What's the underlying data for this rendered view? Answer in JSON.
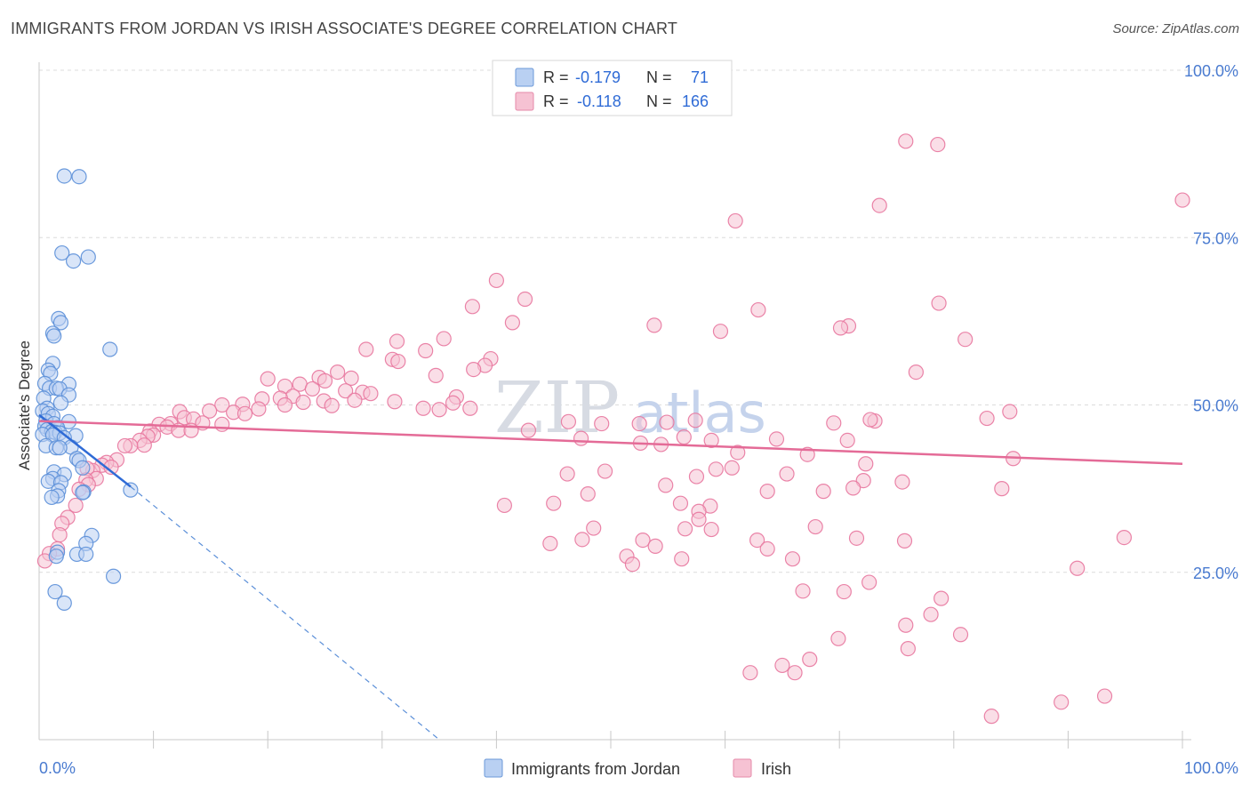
{
  "chart_data": {
    "type": "scatter",
    "title": "IMMIGRANTS FROM JORDAN VS IRISH ASSOCIATE'S DEGREE CORRELATION CHART",
    "source": "Source: ZipAtlas.com",
    "ylabel": "Associate's Degree",
    "xlim": [
      0,
      100
    ],
    "ylim": [
      0,
      100
    ],
    "x_tick_labels": [
      "0.0%",
      "100.0%"
    ],
    "y_ticks": [
      {
        "value": 100,
        "label": "100.0%"
      },
      {
        "value": 75,
        "label": "75.0%"
      },
      {
        "value": 50,
        "label": "50.0%"
      },
      {
        "value": 25,
        "label": "25.0%"
      }
    ],
    "watermark": {
      "a": "ZIP",
      "b": "atlas"
    },
    "legend": {
      "r_label": "R =",
      "n_label": "N =",
      "rows": [
        {
          "series": "Immigrants from Jordan",
          "r": "-0.179",
          "n": "71"
        },
        {
          "series": "Irish",
          "r": "-0.118",
          "n": "166"
        }
      ]
    },
    "series": [
      {
        "name": "Immigrants from Jordan",
        "color": "#5b8fd8",
        "fill": "#b9d0f2",
        "trend": {
          "x0": 0,
          "y0": 48.5,
          "x1": 8,
          "y1": 37.8,
          "dash_x1": 35,
          "dash_y1": 0
        },
        "points": [
          [
            2.2,
            84.2
          ],
          [
            3.5,
            84.1
          ],
          [
            2.0,
            72.7
          ],
          [
            4.3,
            72.1
          ],
          [
            3.0,
            71.5
          ],
          [
            1.7,
            62.9
          ],
          [
            1.9,
            62.3
          ],
          [
            1.2,
            60.7
          ],
          [
            1.3,
            60.3
          ],
          [
            6.2,
            58.3
          ],
          [
            1.2,
            56.2
          ],
          [
            0.8,
            55.2
          ],
          [
            1.0,
            54.7
          ],
          [
            0.5,
            53.2
          ],
          [
            2.6,
            53.1
          ],
          [
            0.9,
            52.5
          ],
          [
            1.5,
            52.5
          ],
          [
            1.8,
            52.4
          ],
          [
            2.6,
            51.5
          ],
          [
            0.4,
            51.0
          ],
          [
            1.9,
            50.3
          ],
          [
            0.7,
            49.5
          ],
          [
            0.3,
            49.1
          ],
          [
            0.8,
            48.7
          ],
          [
            1.2,
            48.3
          ],
          [
            0.6,
            47.6
          ],
          [
            2.6,
            47.5
          ],
          [
            1.3,
            47.2
          ],
          [
            0.5,
            46.8
          ],
          [
            1.6,
            46.6
          ],
          [
            0.7,
            46.3
          ],
          [
            1.1,
            46.0
          ],
          [
            1.4,
            45.9
          ],
          [
            1.8,
            45.8
          ],
          [
            0.3,
            45.6
          ],
          [
            1.2,
            45.5
          ],
          [
            3.2,
            45.4
          ],
          [
            2.2,
            45.1
          ],
          [
            0.6,
            43.9
          ],
          [
            2.8,
            43.7
          ],
          [
            1.5,
            43.6
          ],
          [
            1.8,
            43.6
          ],
          [
            3.3,
            42.0
          ],
          [
            3.5,
            41.7
          ],
          [
            3.8,
            40.6
          ],
          [
            1.3,
            40.0
          ],
          [
            2.2,
            39.6
          ],
          [
            1.2,
            39.0
          ],
          [
            0.8,
            38.6
          ],
          [
            1.9,
            38.4
          ],
          [
            8.0,
            37.3
          ],
          [
            1.7,
            37.2
          ],
          [
            3.9,
            37.0
          ],
          [
            3.8,
            36.9
          ],
          [
            1.6,
            36.4
          ],
          [
            1.1,
            36.2
          ],
          [
            4.6,
            30.5
          ],
          [
            4.1,
            29.3
          ],
          [
            1.6,
            28.0
          ],
          [
            3.3,
            27.7
          ],
          [
            4.1,
            27.7
          ],
          [
            1.5,
            27.4
          ],
          [
            6.5,
            24.4
          ],
          [
            1.4,
            22.1
          ],
          [
            2.2,
            20.4
          ]
        ]
      },
      {
        "name": "Irish",
        "color": "#e8779e",
        "fill": "#f6c2d3",
        "trend": {
          "x0": 0,
          "y0": 47.6,
          "x1": 100,
          "y1": 41.2
        },
        "points": [
          [
            75.8,
            89.4
          ],
          [
            78.6,
            88.9
          ],
          [
            100,
            80.6
          ],
          [
            73.5,
            79.8
          ],
          [
            60.9,
            77.5
          ],
          [
            40.0,
            68.6
          ],
          [
            42.5,
            65.8
          ],
          [
            62.9,
            64.2
          ],
          [
            78.7,
            65.2
          ],
          [
            37.9,
            64.7
          ],
          [
            41.4,
            62.3
          ],
          [
            53.8,
            61.9
          ],
          [
            70.8,
            61.8
          ],
          [
            70.1,
            61.5
          ],
          [
            59.6,
            61.0
          ],
          [
            31.3,
            59.5
          ],
          [
            35.4,
            59.9
          ],
          [
            81.0,
            59.8
          ],
          [
            28.6,
            58.3
          ],
          [
            33.8,
            58.1
          ],
          [
            30.9,
            56.8
          ],
          [
            39.5,
            56.9
          ],
          [
            31.4,
            56.5
          ],
          [
            39.0,
            55.9
          ],
          [
            38.0,
            55.3
          ],
          [
            76.7,
            54.9
          ],
          [
            26.1,
            54.9
          ],
          [
            34.7,
            54.4
          ],
          [
            24.5,
            54.1
          ],
          [
            27.3,
            54.0
          ],
          [
            20.0,
            53.9
          ],
          [
            25.0,
            53.6
          ],
          [
            22.8,
            53.1
          ],
          [
            21.5,
            52.8
          ],
          [
            23.9,
            52.4
          ],
          [
            26.8,
            52.1
          ],
          [
            28.3,
            51.9
          ],
          [
            29.0,
            51.7
          ],
          [
            22.2,
            51.3
          ],
          [
            36.5,
            51.2
          ],
          [
            21.1,
            51.0
          ],
          [
            19.5,
            50.9
          ],
          [
            27.6,
            50.7
          ],
          [
            24.9,
            50.6
          ],
          [
            36.2,
            50.3
          ],
          [
            31.1,
            50.5
          ],
          [
            23.1,
            50.4
          ],
          [
            17.8,
            50.1
          ],
          [
            16.0,
            50.0
          ],
          [
            21.5,
            50.0
          ],
          [
            25.6,
            49.9
          ],
          [
            37.7,
            49.5
          ],
          [
            33.6,
            49.5
          ],
          [
            19.2,
            49.4
          ],
          [
            35.0,
            49.3
          ],
          [
            14.9,
            49.1
          ],
          [
            17.0,
            48.9
          ],
          [
            12.3,
            49.0
          ],
          [
            18.0,
            48.7
          ],
          [
            12.7,
            48.1
          ],
          [
            13.5,
            47.9
          ],
          [
            14.3,
            47.3
          ],
          [
            11.5,
            47.2
          ],
          [
            16.0,
            47.1
          ],
          [
            10.5,
            47.1
          ],
          [
            11.2,
            46.7
          ],
          [
            12.2,
            46.2
          ],
          [
            13.3,
            46.2
          ],
          [
            9.7,
            46.1
          ],
          [
            10.0,
            45.5
          ],
          [
            9.5,
            45.3
          ],
          [
            8.8,
            44.7
          ],
          [
            9.2,
            44.0
          ],
          [
            8.0,
            43.9
          ],
          [
            7.5,
            43.9
          ],
          [
            6.8,
            41.8
          ],
          [
            5.9,
            41.4
          ],
          [
            5.5,
            41.0
          ],
          [
            6.3,
            40.7
          ],
          [
            4.7,
            40.2
          ],
          [
            4.2,
            40.5
          ],
          [
            5.0,
            39.0
          ],
          [
            4.1,
            38.8
          ],
          [
            4.3,
            38.1
          ],
          [
            3.5,
            37.4
          ],
          [
            3.2,
            35.0
          ],
          [
            2.5,
            33.2
          ],
          [
            2.0,
            32.3
          ],
          [
            1.8,
            30.6
          ],
          [
            1.6,
            28.5
          ],
          [
            0.9,
            27.8
          ],
          [
            0.5,
            26.7
          ],
          [
            84.9,
            49.0
          ],
          [
            82.9,
            48.0
          ],
          [
            73.1,
            47.6
          ],
          [
            72.7,
            47.8
          ],
          [
            69.5,
            47.3
          ],
          [
            57.4,
            47.7
          ],
          [
            46.3,
            47.5
          ],
          [
            49.2,
            47.2
          ],
          [
            54.9,
            47.4
          ],
          [
            52.5,
            47.2
          ],
          [
            42.8,
            46.2
          ],
          [
            47.4,
            45.0
          ],
          [
            56.4,
            45.2
          ],
          [
            58.8,
            44.7
          ],
          [
            64.5,
            44.9
          ],
          [
            52.6,
            44.3
          ],
          [
            54.4,
            44.1
          ],
          [
            70.7,
            44.7
          ],
          [
            61.1,
            42.9
          ],
          [
            67.2,
            42.6
          ],
          [
            85.2,
            42.0
          ],
          [
            72.3,
            41.2
          ],
          [
            60.6,
            40.6
          ],
          [
            59.2,
            40.4
          ],
          [
            49.5,
            40.1
          ],
          [
            46.2,
            39.7
          ],
          [
            65.4,
            39.7
          ],
          [
            57.5,
            39.3
          ],
          [
            72.1,
            38.7
          ],
          [
            75.5,
            38.5
          ],
          [
            54.8,
            38.0
          ],
          [
            71.2,
            37.6
          ],
          [
            63.7,
            37.1
          ],
          [
            68.6,
            37.1
          ],
          [
            84.2,
            37.5
          ],
          [
            45.0,
            35.3
          ],
          [
            56.1,
            35.3
          ],
          [
            58.7,
            34.9
          ],
          [
            40.7,
            35.0
          ],
          [
            48.0,
            36.7
          ],
          [
            57.7,
            34.1
          ],
          [
            57.7,
            32.9
          ],
          [
            48.5,
            31.6
          ],
          [
            67.9,
            31.8
          ],
          [
            56.5,
            31.5
          ],
          [
            58.8,
            31.4
          ],
          [
            71.5,
            30.1
          ],
          [
            47.5,
            29.9
          ],
          [
            62.8,
            29.8
          ],
          [
            44.7,
            29.3
          ],
          [
            52.8,
            29.8
          ],
          [
            94.9,
            30.2
          ],
          [
            53.9,
            28.9
          ],
          [
            63.7,
            28.5
          ],
          [
            51.4,
            27.4
          ],
          [
            56.2,
            27.0
          ],
          [
            65.9,
            27.0
          ],
          [
            51.9,
            26.2
          ],
          [
            90.8,
            25.6
          ],
          [
            72.6,
            23.5
          ],
          [
            66.8,
            22.2
          ],
          [
            70.4,
            22.1
          ],
          [
            75.8,
            17.1
          ],
          [
            80.6,
            15.7
          ],
          [
            69.9,
            15.1
          ],
          [
            78.0,
            18.7
          ],
          [
            67.4,
            12.0
          ],
          [
            65.0,
            11.1
          ],
          [
            66.1,
            10.0
          ],
          [
            62.2,
            10.0
          ],
          [
            93.2,
            6.5
          ],
          [
            89.4,
            5.6
          ],
          [
            76.0,
            13.6
          ],
          [
            83.3,
            3.5
          ],
          [
            75.7,
            29.7
          ],
          [
            78.9,
            21.1
          ]
        ]
      }
    ]
  }
}
